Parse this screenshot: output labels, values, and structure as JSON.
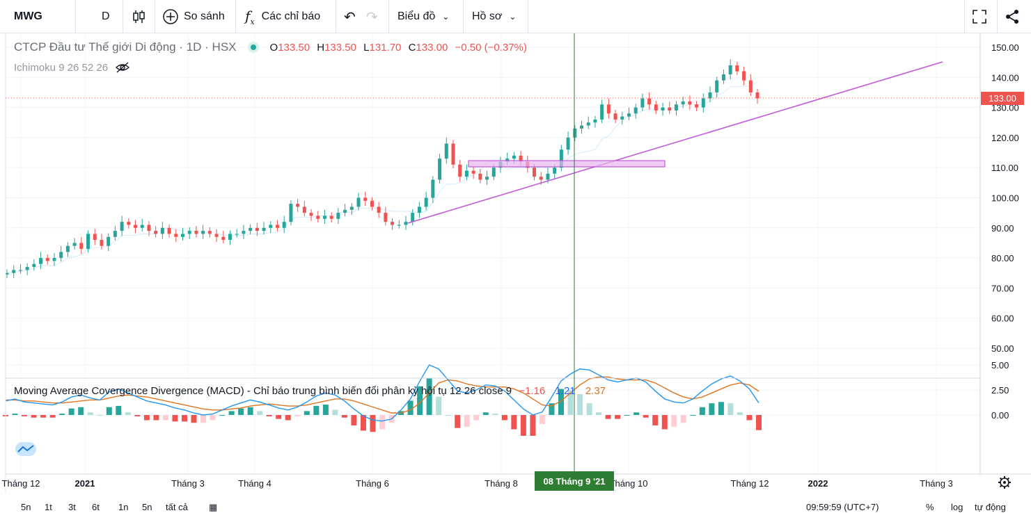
{
  "toolbar": {
    "symbol": "MWG",
    "interval": "D",
    "compare_label": "So sánh",
    "indicators_label": "Các chỉ báo",
    "chart_menu_label": "Biểu đồ",
    "profile_menu_label": "Hồ sơ"
  },
  "legend": {
    "title": "CTCP Đầu tư Thế giới Di động · 1D · HSX",
    "o": "133.50",
    "h": "133.50",
    "l": "131.70",
    "c": "133.00",
    "change": "−0.50 (−0.37%)",
    "ichimoku": "Ichimoku 9 26 52 26"
  },
  "macd_legend": {
    "title": "Moving Average Covergence Divergence (MACD) - Chỉ báo trung bình biến đổi phân kỳ hội tụ 12 26 close 9",
    "hist": "−1.16",
    "macd": "1.21",
    "signal": "2.37"
  },
  "crosshair_label": "08 Tháng 9 '21",
  "last_price_label": "133.00",
  "colors": {
    "up": "#26a69a",
    "down": "#ef5350",
    "trend": "#c05ad6",
    "zone": "#e7b3f0",
    "macd": "#2196f3",
    "signal": "#e0741f",
    "crosshair": "#2e7d32"
  },
  "bottom_bar": {
    "ranges": [
      "5n",
      "1t",
      "3t",
      "6t",
      "1n",
      "5n",
      "tất cả"
    ],
    "clock": "09:59:59 (UTC+7)",
    "percent": "%",
    "log": "log",
    "auto": "tự động"
  },
  "chart_data": [
    {
      "type": "candlestick",
      "title": "CTCP Đầu tư Thế giới Di động · 1D · HSX",
      "xlabel": "",
      "ylabel": "",
      "ylim": [
        40,
        152
      ],
      "y_ticks": [
        "150.00",
        "140.00",
        "130.00",
        "120.00",
        "110.00",
        "100.00",
        "90.00",
        "80.00",
        "70.00",
        "60.00",
        "50.00"
      ],
      "x_ticks": [
        "Tháng 12",
        "2021",
        "Tháng 3",
        "Tháng 4",
        "Tháng 6",
        "Tháng 8",
        "Tháng 10",
        "Tháng 12",
        "2022",
        "Tháng 3"
      ],
      "close_series": [
        75,
        76,
        76,
        77,
        78,
        80,
        79,
        80,
        82,
        84,
        85,
        83,
        88,
        86,
        84,
        87,
        89,
        92,
        91,
        90,
        91,
        89,
        88,
        90,
        88,
        87,
        88,
        89,
        88,
        89,
        88,
        87,
        86,
        88,
        88,
        89,
        90,
        89,
        90,
        91,
        90,
        92,
        98,
        97,
        95,
        94,
        93,
        94,
        93,
        95,
        96,
        97,
        100,
        99,
        97,
        95,
        92,
        91,
        91,
        92,
        95,
        97,
        100,
        106,
        113,
        118,
        111,
        107,
        109,
        108,
        106,
        107,
        110,
        112,
        113,
        114,
        112,
        110,
        107,
        106,
        108,
        110,
        116,
        120,
        123,
        124,
        125,
        126,
        131,
        128,
        126,
        127,
        128,
        130,
        133,
        131,
        129,
        130,
        129,
        131,
        132,
        131,
        130,
        133,
        135,
        139,
        141,
        144,
        142,
        139,
        135,
        133
      ],
      "last_price": 133.0
    },
    {
      "type": "macd",
      "ylim": [
        -1.5,
        5.5
      ],
      "y_ticks": [
        "5.00",
        "2.50",
        "0.00"
      ],
      "macd": [
        1.4,
        1.6,
        1.3,
        1.2,
        1.1,
        1.0,
        1.3,
        1.8,
        2.0,
        1.7,
        1.5,
        2.3,
        2.6,
        2.2,
        1.8,
        1.4,
        1.2,
        1.0,
        0.7,
        0.5,
        0.2,
        0.0,
        0.1,
        0.5,
        0.9,
        1.2,
        1.5,
        1.3,
        1.0,
        0.7,
        0.5,
        0.8,
        1.3,
        1.9,
        2.2,
        2.0,
        1.4,
        0.6,
        -0.1,
        -0.5,
        -0.6,
        -0.4,
        0.5,
        1.6,
        3.4,
        5.0,
        4.6,
        3.5,
        2.4,
        2.2,
        2.5,
        3.0,
        2.9,
        2.4,
        1.5,
        0.6,
        0.0,
        0.3,
        1.8,
        3.4,
        4.1,
        4.6,
        4.5,
        4.0,
        3.5,
        3.3,
        3.5,
        3.7,
        3.3,
        2.4,
        1.6,
        1.3,
        1.2,
        1.6,
        2.4,
        3.1,
        3.6,
        3.9,
        3.4,
        2.6,
        1.21
      ],
      "signal": [
        1.5,
        1.5,
        1.4,
        1.4,
        1.3,
        1.2,
        1.2,
        1.3,
        1.4,
        1.5,
        1.5,
        1.7,
        1.9,
        2.0,
        1.9,
        1.8,
        1.6,
        1.4,
        1.2,
        1.0,
        0.8,
        0.6,
        0.5,
        0.5,
        0.6,
        0.7,
        0.9,
        1.0,
        1.1,
        1.0,
        0.9,
        0.9,
        1.0,
        1.2,
        1.4,
        1.6,
        1.6,
        1.4,
        1.1,
        0.8,
        0.5,
        0.2,
        0.2,
        0.5,
        1.2,
        2.2,
        3.2,
        3.5,
        3.4,
        3.1,
        2.9,
        2.8,
        2.8,
        2.8,
        2.6,
        2.2,
        1.6,
        1.0,
        0.9,
        1.4,
        2.2,
        3.0,
        3.6,
        3.8,
        3.8,
        3.6,
        3.5,
        3.5,
        3.5,
        3.2,
        2.7,
        2.2,
        1.8,
        1.6,
        1.8,
        2.2,
        2.6,
        3.0,
        3.2,
        3.0,
        2.37
      ],
      "histogram_last": -1.16
    }
  ]
}
